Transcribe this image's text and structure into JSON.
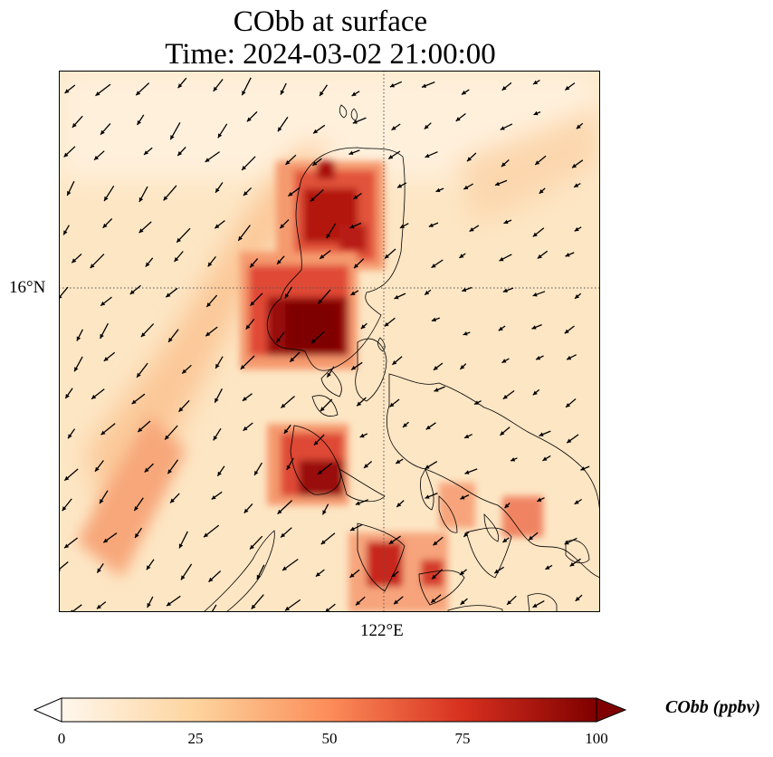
{
  "title": {
    "line1": "CObb at surface",
    "line2": "Time: 2024-03-02 21:00:00"
  },
  "map": {
    "lat_tick_label": "16°N",
    "lon_tick_label": "122°E",
    "gridlines": "dotted",
    "coastlines": true,
    "wind_vectors": true,
    "field": "CObb",
    "colormap": "OrRd",
    "colors": {
      "low": "#fff7ec",
      "mid": "#fdd49e",
      "high": "#d7301f",
      "max": "#7f0000"
    }
  },
  "colorbar": {
    "label": "CObb (ppbv)",
    "ticks": [
      "0",
      "25",
      "50",
      "75",
      "100"
    ],
    "range": [
      0,
      100
    ],
    "extend": "both"
  }
}
